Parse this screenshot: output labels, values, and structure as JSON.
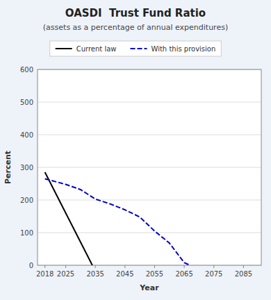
{
  "chart_data": {
    "type": "line",
    "title": "OASDI  Trust Fund Ratio",
    "subtitle": "(assets as a percentage of annual expenditures)",
    "x_label": "Year",
    "y_label": "Percent",
    "xlim": [
      2015.5,
      2091
    ],
    "ylim": [
      0,
      600
    ],
    "xticks": [
      2018,
      2025,
      2035,
      2045,
      2055,
      2065,
      2075,
      2085
    ],
    "yticks": [
      0,
      100,
      200,
      300,
      400,
      500,
      600
    ],
    "grid": "y",
    "legend": "top",
    "series": [
      {
        "name": "Current law",
        "color": "#000000",
        "line_style": "solid",
        "x": [
          2018,
          2034
        ],
        "values": [
          285,
          0
        ]
      },
      {
        "name": "With this provision",
        "color": "#0000cc",
        "line_style": "dashed",
        "x": [
          2018,
          2025,
          2030,
          2035,
          2040,
          2045,
          2050,
          2055,
          2060,
          2065,
          2067
        ],
        "values": [
          265,
          248,
          232,
          203,
          188,
          170,
          148,
          105,
          68,
          8,
          0
        ]
      }
    ]
  }
}
